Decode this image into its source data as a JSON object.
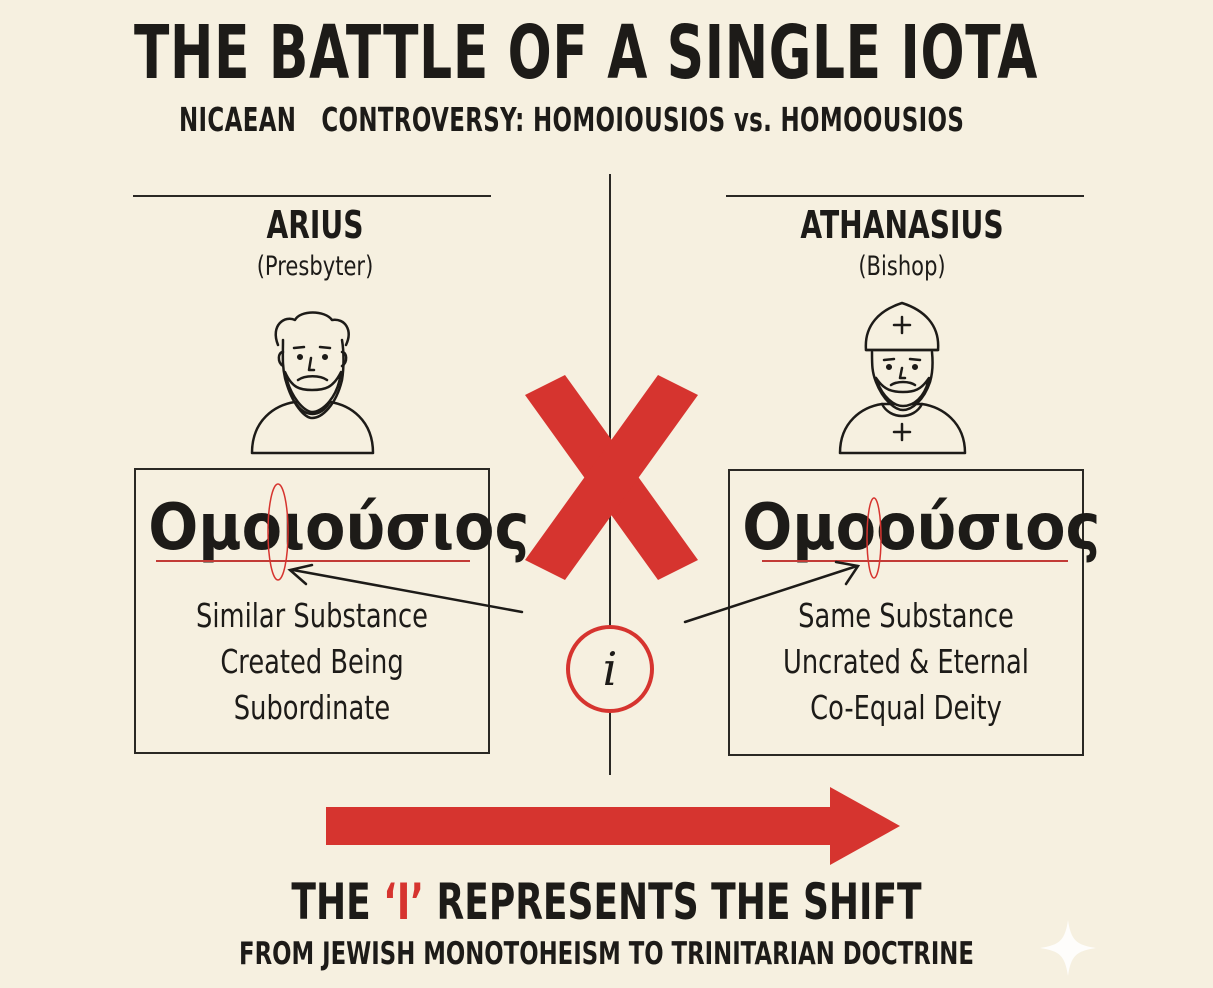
{
  "title": "THE BATTLE OF A SINGLE IOTA",
  "subtitle": "NICAEAN   CONTROVERSY: HOMOIOUSIOS vs. HOMOOUSIOS",
  "left": {
    "name": "ARIUS",
    "role": "(Presbyter)",
    "figure_icon": "bearded-man-icon",
    "term": "Ομοιούσιος",
    "points": [
      "Similar Substance",
      "Created Being",
      "Subordinate"
    ]
  },
  "right": {
    "name": "ATHANASIUS",
    "role": "(Bishop)",
    "figure_icon": "bishop-with-mitre-icon",
    "term": "Ομοούσιος",
    "points": [
      "Same Substance",
      "Uncrated & Eternal",
      "Co-Equal Deity"
    ]
  },
  "center": {
    "symbol": "i",
    "cross_icon": "red-x-icon"
  },
  "footer": {
    "title_before": "THE ",
    "title_accent": "‘I’",
    "title_after": " REPRESENTS THE SHIFT",
    "subtitle": "FROM JEWISH MONOTOHEISM TO TRINITARIAN DOCTRINE"
  },
  "colors": {
    "background": "#f6f0e0",
    "accent_red": "#d6342f",
    "ink": "#1d1b18"
  }
}
